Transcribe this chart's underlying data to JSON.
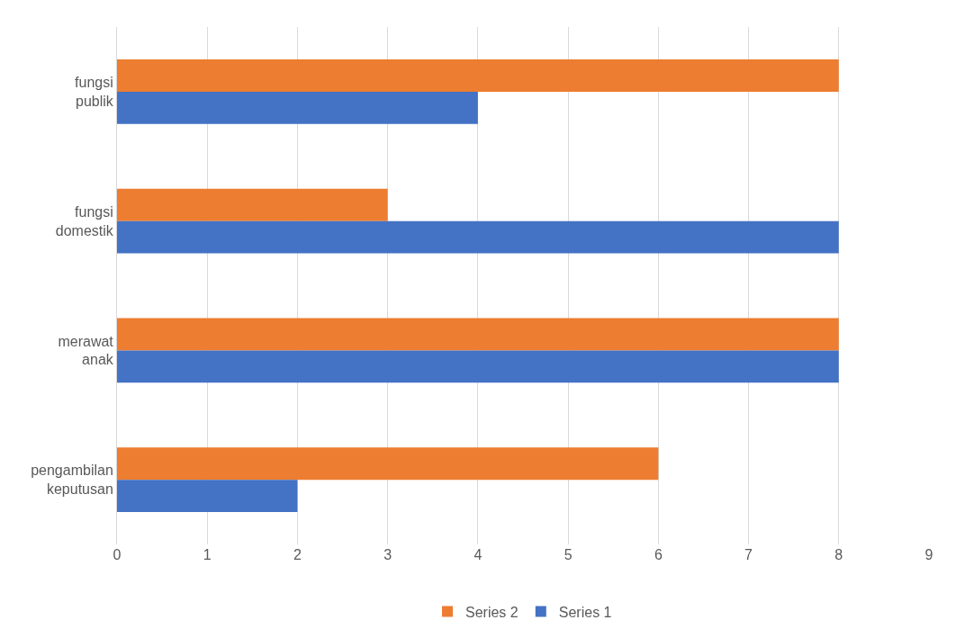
{
  "chart_data": {
    "type": "bar",
    "orientation": "horizontal",
    "categories": [
      "fungsi publik",
      "fungsi domestik",
      "merawat anak",
      "pengambilan keputusan"
    ],
    "series": [
      {
        "name": "Series 2",
        "color": "#ed7d31",
        "values": [
          8,
          3,
          8,
          6
        ]
      },
      {
        "name": "Series 1",
        "color": "#4472c4",
        "values": [
          4,
          8,
          8,
          2
        ]
      }
    ],
    "xlim": [
      0,
      9
    ],
    "xticks": [
      0,
      1,
      2,
      3,
      4,
      5,
      6,
      7,
      8,
      9
    ],
    "grid": "x",
    "legend": "bottom"
  }
}
